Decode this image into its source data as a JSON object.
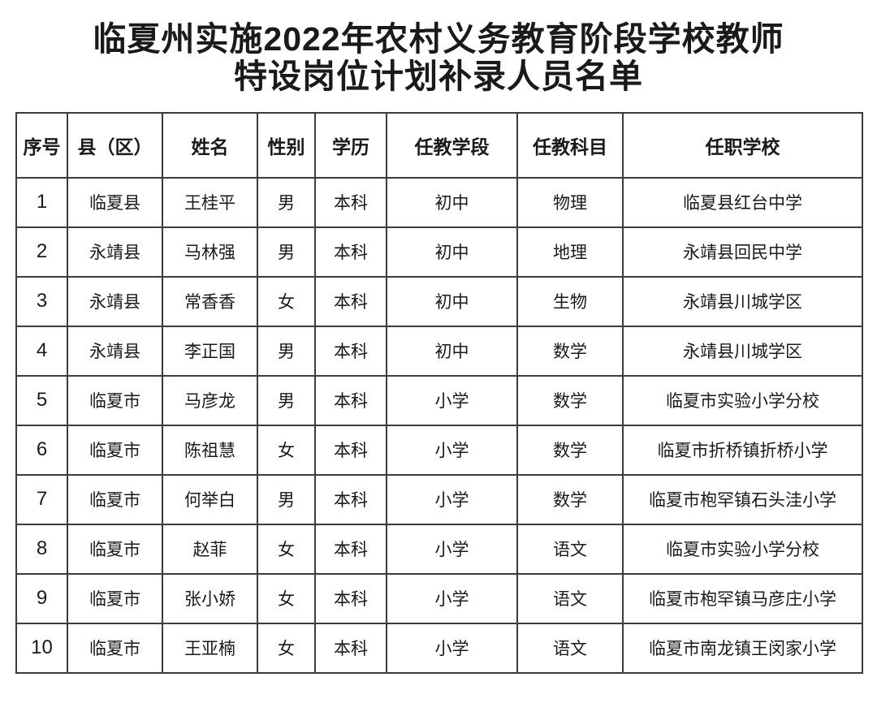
{
  "title": {
    "line1": "临夏州实施2022年农村义务教育阶段学校教师",
    "line2": "特设岗位计划补录人员名单"
  },
  "table": {
    "headers": [
      "序号",
      "县（区）",
      "姓名",
      "性别",
      "学历",
      "任教学段",
      "任教科目",
      "任职学校"
    ],
    "rows": [
      [
        "1",
        "临夏县",
        "王桂平",
        "男",
        "本科",
        "初中",
        "物理",
        "临夏县红台中学"
      ],
      [
        "2",
        "永靖县",
        "马林强",
        "男",
        "本科",
        "初中",
        "地理",
        "永靖县回民中学"
      ],
      [
        "3",
        "永靖县",
        "常香香",
        "女",
        "本科",
        "初中",
        "生物",
        "永靖县川城学区"
      ],
      [
        "4",
        "永靖县",
        "李正国",
        "男",
        "本科",
        "初中",
        "数学",
        "永靖县川城学区"
      ],
      [
        "5",
        "临夏市",
        "马彦龙",
        "男",
        "本科",
        "小学",
        "数学",
        "临夏市实验小学分校"
      ],
      [
        "6",
        "临夏市",
        "陈祖慧",
        "女",
        "本科",
        "小学",
        "数学",
        "临夏市折桥镇折桥小学"
      ],
      [
        "7",
        "临夏市",
        "何举白",
        "男",
        "本科",
        "小学",
        "数学",
        "临夏市枹罕镇石头洼小学"
      ],
      [
        "8",
        "临夏市",
        "赵菲",
        "女",
        "本科",
        "小学",
        "语文",
        "临夏市实验小学分校"
      ],
      [
        "9",
        "临夏市",
        "张小娇",
        "女",
        "本科",
        "小学",
        "语文",
        "临夏市枹罕镇马彦庄小学"
      ],
      [
        "10",
        "临夏市",
        "王亚楠",
        "女",
        "本科",
        "小学",
        "语文",
        "临夏市南龙镇王闵家小学"
      ]
    ]
  },
  "colors": {
    "background": "#ffffff",
    "text": "#1a1a1a",
    "border": "#3c3c3c"
  }
}
